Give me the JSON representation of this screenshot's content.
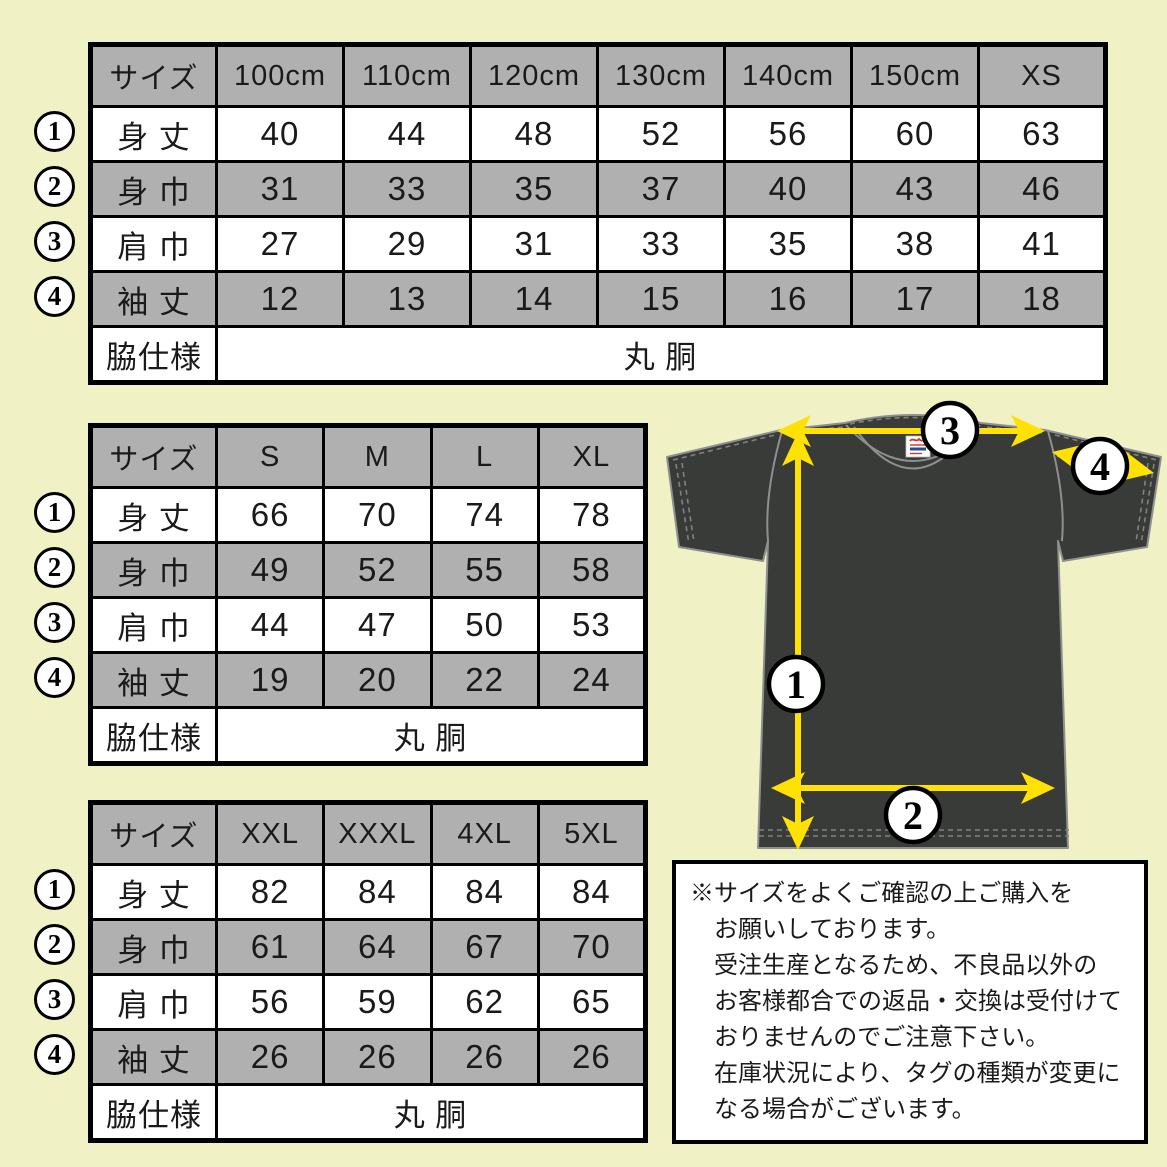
{
  "colors": {
    "background": "#f1f1c6",
    "table_gray": "#b0b0b0",
    "arrow_yellow": "#ffe105",
    "shirt_dark": "#383b38"
  },
  "size_tables": [
    {
      "columns": [
        "サイズ",
        "100cm",
        "110cm",
        "120cm",
        "130cm",
        "140cm",
        "150cm",
        "XS"
      ],
      "rows": [
        {
          "num": "1",
          "label": "身 丈",
          "values": [
            "40",
            "44",
            "48",
            "52",
            "56",
            "60",
            "63"
          ]
        },
        {
          "num": "2",
          "label": "身 巾",
          "values": [
            "31",
            "33",
            "35",
            "37",
            "40",
            "43",
            "46"
          ]
        },
        {
          "num": "3",
          "label": "肩 巾",
          "values": [
            "27",
            "29",
            "31",
            "33",
            "35",
            "38",
            "41"
          ]
        },
        {
          "num": "4",
          "label": "袖 丈",
          "values": [
            "12",
            "13",
            "14",
            "15",
            "16",
            "17",
            "18"
          ]
        }
      ],
      "footer": {
        "label": "脇仕様",
        "value": "丸 胴"
      }
    },
    {
      "columns": [
        "サイズ",
        "S",
        "M",
        "L",
        "XL"
      ],
      "rows": [
        {
          "num": "1",
          "label": "身 丈",
          "values": [
            "66",
            "70",
            "74",
            "78"
          ]
        },
        {
          "num": "2",
          "label": "身 巾",
          "values": [
            "49",
            "52",
            "55",
            "58"
          ]
        },
        {
          "num": "3",
          "label": "肩 巾",
          "values": [
            "44",
            "47",
            "50",
            "53"
          ]
        },
        {
          "num": "4",
          "label": "袖 丈",
          "values": [
            "19",
            "20",
            "22",
            "24"
          ]
        }
      ],
      "footer": {
        "label": "脇仕様",
        "value": "丸 胴"
      }
    },
    {
      "columns": [
        "サイズ",
        "XXL",
        "XXXL",
        "4XL",
        "5XL"
      ],
      "rows": [
        {
          "num": "1",
          "label": "身 丈",
          "values": [
            "82",
            "84",
            "84",
            "84"
          ]
        },
        {
          "num": "2",
          "label": "身 巾",
          "values": [
            "61",
            "64",
            "67",
            "70"
          ]
        },
        {
          "num": "3",
          "label": "肩 巾",
          "values": [
            "56",
            "59",
            "62",
            "65"
          ]
        },
        {
          "num": "4",
          "label": "袖 丈",
          "values": [
            "26",
            "26",
            "26",
            "26"
          ]
        }
      ],
      "footer": {
        "label": "脇仕様",
        "value": "丸 胴"
      }
    }
  ],
  "diagram": {
    "labels": [
      "1",
      "2",
      "3",
      "4"
    ]
  },
  "notice": {
    "lines": [
      "※サイズをよくご確認の上ご購入を",
      "お願いしております。",
      "受注生産となるため、不良品以外の",
      "お客様都合での返品・交換は受付けて",
      "おりませんのでご注意下さい。",
      "在庫状況により、タグの種類が変更に",
      "なる場合がございます。"
    ]
  }
}
